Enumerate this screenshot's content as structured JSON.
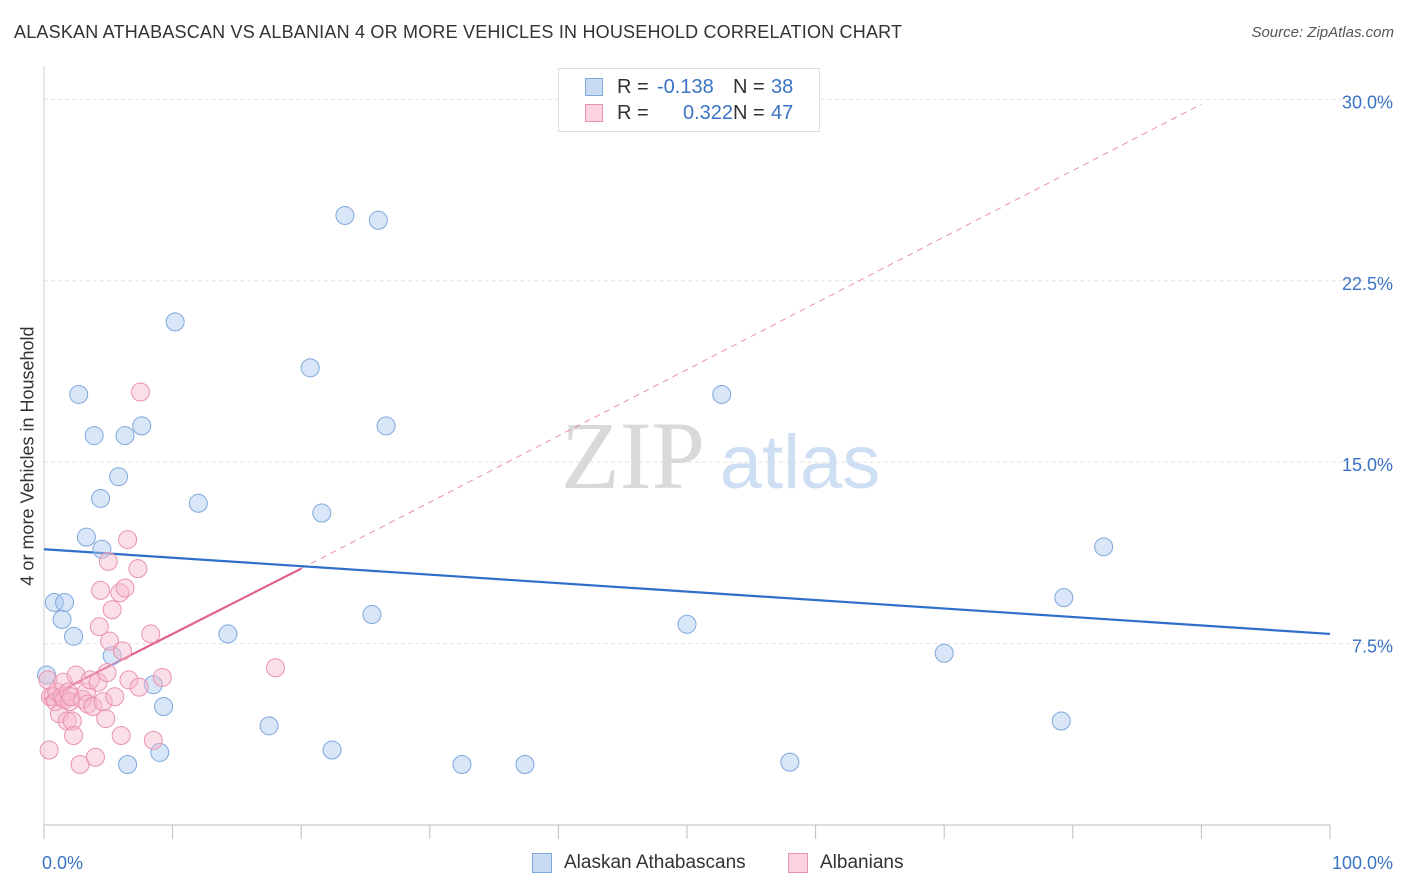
{
  "title": "ALASKAN ATHABASCAN VS ALBANIAN 4 OR MORE VEHICLES IN HOUSEHOLD CORRELATION CHART",
  "source": "Source: ZipAtlas.com",
  "watermark": {
    "zip": "ZIP",
    "atlas": "atlas"
  },
  "legend": {
    "rows": [
      {
        "r_label": "R =",
        "r_value": "-0.138",
        "n_label": "N =",
        "n_value": "38",
        "color": "#a9c7ef"
      },
      {
        "r_label": "R =",
        "r_value": "0.322",
        "n_label": "N =",
        "n_value": "47",
        "color": "#f6b9cb"
      }
    ]
  },
  "bottom_legend": [
    {
      "label": "Alaskan Athabascans",
      "color": "#a9c7ef"
    },
    {
      "label": "Albanians",
      "color": "#f6b9cb"
    }
  ],
  "chart_data": {
    "type": "scatter",
    "title": "ALASKAN ATHABASCAN VS ALBANIAN 4 OR MORE VEHICLES IN HOUSEHOLD CORRELATION CHART",
    "xlabel": "",
    "ylabel": "4 or more Vehicles in Household",
    "xlim": [
      0,
      100
    ],
    "ylim": [
      0,
      30.8
    ],
    "x_tick_labels": [
      "0.0%",
      "100.0%"
    ],
    "y_ticks": [
      7.5,
      15.0,
      22.5,
      30.0
    ],
    "y_tick_labels": [
      "7.5%",
      "15.0%",
      "22.5%",
      "30.0%"
    ],
    "grid": true,
    "legend_position": "top-center",
    "series": [
      {
        "name": "Alaskan Athabascans",
        "color": "#a9c7ef",
        "stroke": "#7fa7dc",
        "trend": {
          "x": [
            0,
            100
          ],
          "y": [
            11.4,
            7.9
          ],
          "style": "solid",
          "color": "#2f6fcc"
        },
        "points": [
          [
            0.2,
            6.2
          ],
          [
            0.8,
            9.2
          ],
          [
            1.6,
            9.2
          ],
          [
            1.4,
            8.5
          ],
          [
            2.3,
            7.8
          ],
          [
            2.7,
            17.8
          ],
          [
            3.3,
            11.9
          ],
          [
            3.9,
            16.1
          ],
          [
            4.4,
            13.5
          ],
          [
            4.5,
            11.4
          ],
          [
            5.3,
            7.0
          ],
          [
            5.8,
            14.4
          ],
          [
            6.3,
            16.1
          ],
          [
            7.6,
            16.5
          ],
          [
            6.5,
            2.5
          ],
          [
            8.5,
            5.8
          ],
          [
            9.0,
            3.0
          ],
          [
            9.3,
            4.9
          ],
          [
            10.2,
            20.8
          ],
          [
            12.0,
            13.3
          ],
          [
            14.3,
            7.9
          ],
          [
            17.5,
            4.1
          ],
          [
            20.7,
            18.9
          ],
          [
            21.6,
            12.9
          ],
          [
            22.4,
            3.1
          ],
          [
            23.4,
            25.2
          ],
          [
            26.0,
            25.0
          ],
          [
            25.5,
            8.7
          ],
          [
            26.6,
            16.5
          ],
          [
            32.5,
            2.5
          ],
          [
            37.4,
            2.5
          ],
          [
            50.0,
            8.3
          ],
          [
            52.7,
            17.8
          ],
          [
            58.0,
            2.6
          ],
          [
            70.0,
            7.1
          ],
          [
            79.1,
            4.3
          ],
          [
            79.3,
            9.4
          ],
          [
            82.4,
            11.5
          ]
        ]
      },
      {
        "name": "Albanians",
        "color": "#f6b9cb",
        "stroke": "#e993ae",
        "trend": {
          "x": [
            0,
            20
          ],
          "y": [
            5.2,
            10.6
          ],
          "style": "solid",
          "color": "#e0608c",
          "extension": {
            "x": [
              20,
              90
            ],
            "y": [
              10.6,
              29.8
            ],
            "style": "dashed"
          }
        },
        "points": [
          [
            0.3,
            6.0
          ],
          [
            0.4,
            3.1
          ],
          [
            0.5,
            5.3
          ],
          [
            0.7,
            5.3
          ],
          [
            0.9,
            5.1
          ],
          [
            1.0,
            5.5
          ],
          [
            1.2,
            4.6
          ],
          [
            1.4,
            5.3
          ],
          [
            1.5,
            5.9
          ],
          [
            1.6,
            5.2
          ],
          [
            1.8,
            4.3
          ],
          [
            1.9,
            5.5
          ],
          [
            2.0,
            5.1
          ],
          [
            2.1,
            5.3
          ],
          [
            2.2,
            4.3
          ],
          [
            2.3,
            3.7
          ],
          [
            2.5,
            6.2
          ],
          [
            2.8,
            2.5
          ],
          [
            3.0,
            5.2
          ],
          [
            3.3,
            5.5
          ],
          [
            3.4,
            5.0
          ],
          [
            3.6,
            6.0
          ],
          [
            3.8,
            4.9
          ],
          [
            4.0,
            2.8
          ],
          [
            4.2,
            5.9
          ],
          [
            4.3,
            8.2
          ],
          [
            4.4,
            9.7
          ],
          [
            4.6,
            5.1
          ],
          [
            4.8,
            4.4
          ],
          [
            4.9,
            6.3
          ],
          [
            5.0,
            10.9
          ],
          [
            5.1,
            7.6
          ],
          [
            5.3,
            8.9
          ],
          [
            5.5,
            5.3
          ],
          [
            5.9,
            9.6
          ],
          [
            6.0,
            3.7
          ],
          [
            6.1,
            7.2
          ],
          [
            6.3,
            9.8
          ],
          [
            6.5,
            11.8
          ],
          [
            6.6,
            6.0
          ],
          [
            7.3,
            10.6
          ],
          [
            7.4,
            5.7
          ],
          [
            7.5,
            17.9
          ],
          [
            8.3,
            7.9
          ],
          [
            8.5,
            3.5
          ],
          [
            9.2,
            6.1
          ],
          [
            18.0,
            6.5
          ]
        ]
      }
    ]
  }
}
